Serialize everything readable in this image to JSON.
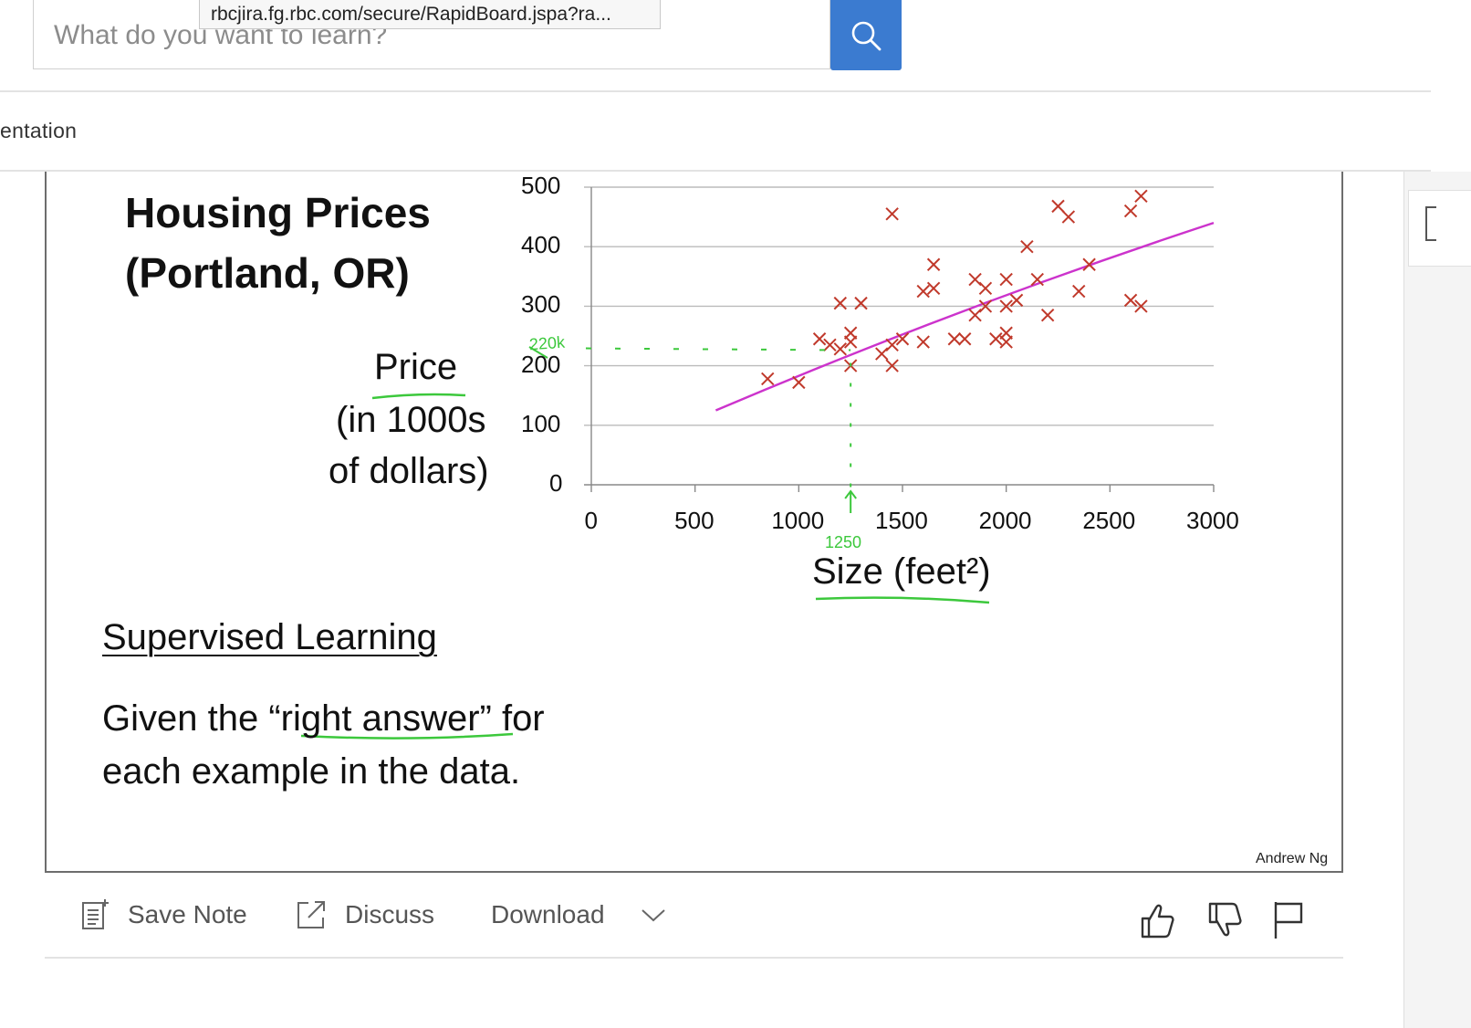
{
  "search": {
    "placeholder": "What do you want to learn?",
    "button_icon": "search-icon",
    "accent_color": "#3b7bd0"
  },
  "tooltip": {
    "url": "rbcjira.fg.rbc.com/secure/RapidBoard.jspa?ra..."
  },
  "breadcrumb": {
    "text": "entation"
  },
  "slide": {
    "title_line1": "Housing Prices",
    "title_line2": "(Portland, OR)",
    "ylabel_line1": "Price",
    "ylabel_line2": "(in 1000s",
    "ylabel_line3": "of dollars)",
    "xlabel": "Size (feet²)",
    "annotation_price": "220k",
    "annotation_size": "1250",
    "supervised_title": "Supervised Learning",
    "supervised_line1": "Given the “right answer” for",
    "supervised_line2": "each example in the data.",
    "credit": "Andrew Ng"
  },
  "chart_data": {
    "type": "scatter",
    "x_ticks": [
      "0",
      "500",
      "1000",
      "1500",
      "2000",
      "2500",
      "3000"
    ],
    "y_ticks": [
      "0",
      "100",
      "200",
      "300",
      "400",
      "500"
    ],
    "xlim": [
      0,
      3000
    ],
    "ylim": [
      0,
      500
    ],
    "grid": true,
    "point_color": "#c0392b",
    "fit_color": "#cc33cc",
    "annotation_color": "#3cc83c",
    "points": [
      [
        850,
        178
      ],
      [
        1000,
        172
      ],
      [
        1100,
        245
      ],
      [
        1150,
        235
      ],
      [
        1200,
        305
      ],
      [
        1250,
        200
      ],
      [
        1200,
        228
      ],
      [
        1250,
        255
      ],
      [
        1250,
        240
      ],
      [
        1300,
        305
      ],
      [
        1400,
        220
      ],
      [
        1450,
        200
      ],
      [
        1450,
        235
      ],
      [
        1500,
        245
      ],
      [
        1450,
        455
      ],
      [
        1600,
        240
      ],
      [
        1600,
        325
      ],
      [
        1650,
        330
      ],
      [
        1650,
        370
      ],
      [
        1750,
        245
      ],
      [
        1800,
        245
      ],
      [
        1850,
        285
      ],
      [
        1850,
        345
      ],
      [
        1900,
        300
      ],
      [
        1900,
        330
      ],
      [
        1950,
        245
      ],
      [
        2000,
        240
      ],
      [
        2000,
        255
      ],
      [
        2000,
        300
      ],
      [
        2000,
        345
      ],
      [
        2050,
        310
      ],
      [
        2100,
        400
      ],
      [
        2150,
        345
      ],
      [
        2200,
        285
      ],
      [
        2250,
        468
      ],
      [
        2300,
        450
      ],
      [
        2350,
        325
      ],
      [
        2400,
        370
      ],
      [
        2600,
        460
      ],
      [
        2650,
        485
      ],
      [
        2600,
        310
      ],
      [
        2650,
        300
      ]
    ],
    "fit_line": [
      [
        600,
        125
      ],
      [
        3000,
        440
      ]
    ],
    "annotation_point": [
      1250,
      220
    ]
  },
  "toolbar": {
    "save_note": "Save Note",
    "discuss": "Discuss",
    "download": "Download"
  }
}
